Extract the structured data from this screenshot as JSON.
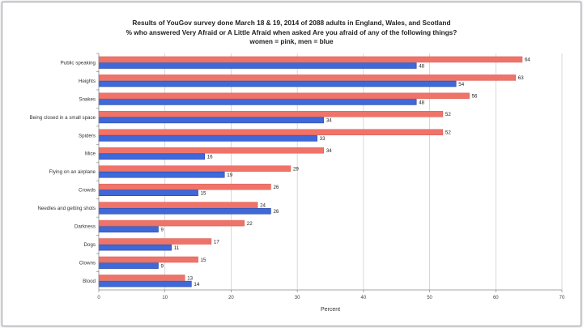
{
  "chart_data": {
    "type": "bar",
    "orientation": "horizontal",
    "title": "Results of YouGov survey done March 18 & 19, 2014 of 2088 adults in England, Wales, and Scotland",
    "subtitle": "% who answered Very Afraid or A Little Afraid when asked Are you afraid of any of the following things?",
    "legend_note": "women = pink, men = blue",
    "xlabel": "Percent",
    "ylabel": "",
    "xlim": [
      0,
      70
    ],
    "xticks": [
      0,
      10,
      20,
      30,
      40,
      50,
      60,
      70
    ],
    "grid": true,
    "categories": [
      "Public speaking",
      "Heights",
      "Snakes",
      "Being closed in a small space",
      "Spiders",
      "Mice",
      "Flying on an airplane",
      "Crowds",
      "Needles and getting shots",
      "Darkness",
      "Dogs",
      "Clowns",
      "Blood"
    ],
    "series": [
      {
        "name": "women",
        "color": "#f0736a",
        "values": [
          64,
          63,
          56,
          52,
          52,
          34,
          29,
          26,
          24,
          22,
          17,
          15,
          13
        ]
      },
      {
        "name": "men",
        "color": "#3f68d8",
        "values": [
          48,
          54,
          48,
          34,
          33,
          16,
          19,
          15,
          26,
          9,
          11,
          9,
          14
        ]
      }
    ]
  }
}
